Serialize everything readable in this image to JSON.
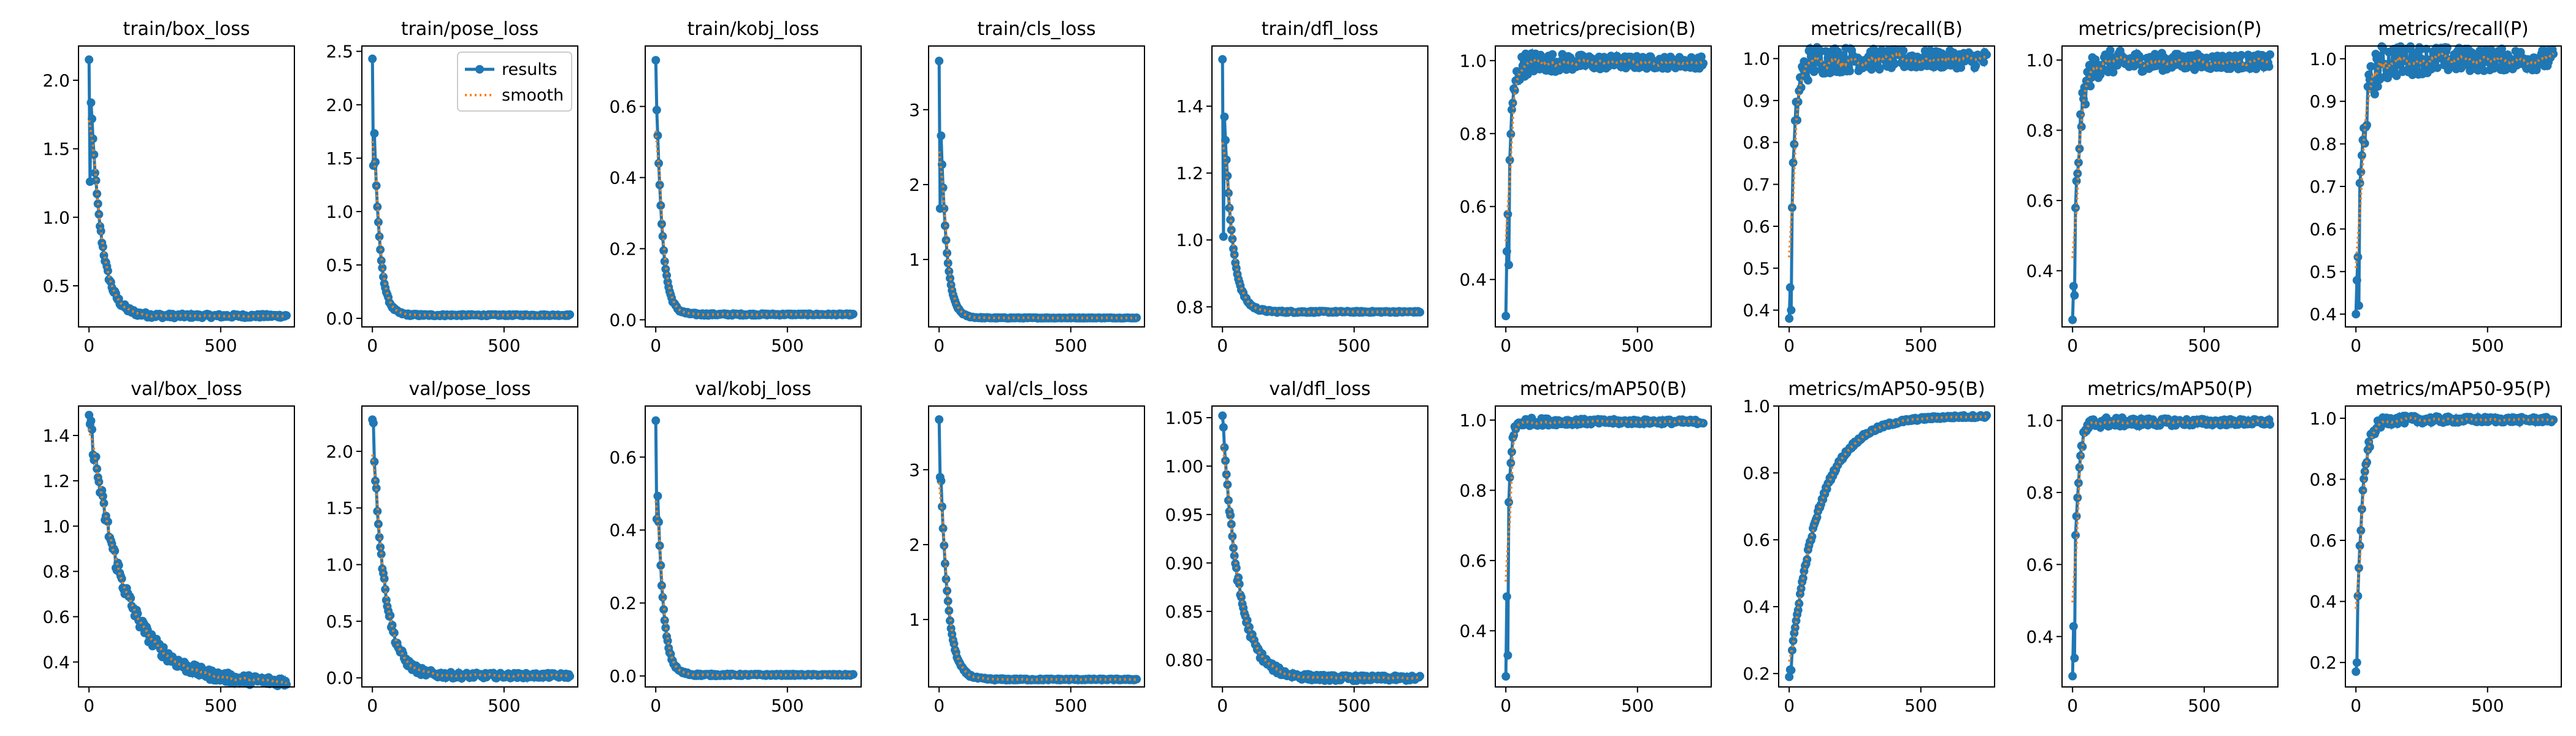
{
  "figure": {
    "legend": {
      "labels": [
        "results",
        "smooth"
      ],
      "position": "upper-right",
      "in_panel": 1
    },
    "colors": {
      "results": "#1f77b4",
      "smooth": "#ff7f0e",
      "axes": "#000000",
      "background": "#ffffff"
    }
  },
  "chart_data": [
    {
      "type": "line",
      "title": "train/box_loss",
      "x_ticks": [
        0,
        500
      ],
      "y_ticks": [
        "0.5",
        "1.0",
        "1.5",
        "2.0"
      ],
      "xlim": [
        -40,
        780
      ],
      "ylim": [
        0.2,
        2.25
      ],
      "series": [
        {
          "name": "results",
          "start": 2.15,
          "end": 0.28,
          "tau": 40,
          "noise": 0.03,
          "spike": [
            1,
            1.26
          ]
        },
        {
          "name": "smooth"
        }
      ]
    },
    {
      "type": "line",
      "title": "train/pose_loss",
      "x_ticks": [
        0,
        500
      ],
      "y_ticks": [
        "0.0",
        "0.5",
        "1.0",
        "1.5",
        "2.0",
        "2.5"
      ],
      "xlim": [
        -40,
        780
      ],
      "ylim": [
        -0.08,
        2.55
      ],
      "series": [
        {
          "name": "results",
          "start": 2.43,
          "end": 0.03,
          "tau": 22,
          "noise": 0.015,
          "spike": [
            1,
            1.43
          ]
        },
        {
          "name": "smooth"
        }
      ]
    },
    {
      "type": "line",
      "title": "train/kobj_loss",
      "x_ticks": [
        0,
        500
      ],
      "y_ticks": [
        "0.0",
        "0.2",
        "0.4",
        "0.6"
      ],
      "xlim": [
        -40,
        780
      ],
      "ylim": [
        -0.02,
        0.77
      ],
      "series": [
        {
          "name": "results",
          "start": 0.73,
          "end": 0.015,
          "tau": 22,
          "noise": 0.005,
          "spike": [
            1,
            0.59
          ]
        },
        {
          "name": "smooth"
        }
      ]
    },
    {
      "type": "line",
      "title": "train/cls_loss",
      "x_ticks": [
        0,
        500
      ],
      "y_ticks": [
        "1",
        "2",
        "3"
      ],
      "xlim": [
        -40,
        780
      ],
      "ylim": [
        0.1,
        3.85
      ],
      "series": [
        {
          "name": "results",
          "start": 3.65,
          "end": 0.22,
          "tau": 22,
          "noise": 0.01,
          "spike": [
            1,
            1.68
          ]
        },
        {
          "name": "smooth"
        }
      ]
    },
    {
      "type": "line",
      "title": "train/dfl_loss",
      "x_ticks": [
        0,
        500
      ],
      "y_ticks": [
        "0.8",
        "1.0",
        "1.2",
        "1.4"
      ],
      "xlim": [
        -40,
        780
      ],
      "ylim": [
        0.74,
        1.58
      ],
      "series": [
        {
          "name": "results",
          "start": 1.54,
          "end": 0.785,
          "tau": 30,
          "noise": 0.005,
          "spike": [
            1,
            1.01
          ]
        },
        {
          "name": "smooth"
        }
      ]
    },
    {
      "type": "line",
      "title": "metrics/precision(B)",
      "x_ticks": [
        0,
        500
      ],
      "y_ticks": [
        "0.4",
        "0.6",
        "0.8",
        "1.0"
      ],
      "xlim": [
        -40,
        780
      ],
      "ylim": [
        0.27,
        1.04
      ],
      "series": [
        {
          "name": "results",
          "start": 0.3,
          "end": 0.995,
          "tau": 15,
          "noise": 0.04,
          "spike": [
            3,
            0.44
          ]
        },
        {
          "name": "smooth"
        }
      ]
    },
    {
      "type": "line",
      "title": "metrics/recall(B)",
      "x_ticks": [
        0,
        500
      ],
      "y_ticks": [
        "0.4",
        "0.5",
        "0.6",
        "0.7",
        "0.8",
        "0.9",
        "1.0"
      ],
      "xlim": [
        -40,
        780
      ],
      "ylim": [
        0.36,
        1.03
      ],
      "series": [
        {
          "name": "results",
          "start": 0.38,
          "end": 0.998,
          "tau": 18,
          "noise": 0.05,
          "spike": [
            2,
            0.4
          ]
        },
        {
          "name": "smooth"
        }
      ]
    },
    {
      "type": "line",
      "title": "metrics/precision(P)",
      "x_ticks": [
        0,
        500
      ],
      "y_ticks": [
        "0.4",
        "0.6",
        "0.8",
        "1.0"
      ],
      "xlim": [
        -40,
        780
      ],
      "ylim": [
        0.24,
        1.04
      ],
      "series": [
        {
          "name": "results",
          "start": 0.26,
          "end": 0.995,
          "tau": 22,
          "noise": 0.05,
          "spike": [
            2,
            0.33
          ]
        },
        {
          "name": "smooth"
        }
      ]
    },
    {
      "type": "line",
      "title": "metrics/recall(P)",
      "x_ticks": [
        0,
        500
      ],
      "y_ticks": [
        "0.4",
        "0.5",
        "0.6",
        "0.7",
        "0.8",
        "0.9",
        "1.0"
      ],
      "xlim": [
        -40,
        780
      ],
      "ylim": [
        0.37,
        1.03
      ],
      "series": [
        {
          "name": "results",
          "start": 0.4,
          "end": 0.998,
          "tau": 25,
          "noise": 0.06,
          "spike": [
            3,
            0.42
          ]
        },
        {
          "name": "smooth"
        }
      ]
    },
    {
      "type": "line",
      "title": "val/box_loss",
      "x_ticks": [
        0,
        500
      ],
      "y_ticks": [
        "0.4",
        "0.6",
        "0.8",
        "1.0",
        "1.2",
        "1.4"
      ],
      "xlim": [
        -40,
        780
      ],
      "ylim": [
        0.29,
        1.53
      ],
      "series": [
        {
          "name": "results",
          "start": 1.49,
          "end": 0.31,
          "tau": 130,
          "noise": 0.05,
          "spike": [
            1,
            1.45
          ]
        },
        {
          "name": "smooth"
        }
      ]
    },
    {
      "type": "line",
      "title": "val/pose_loss",
      "x_ticks": [
        0,
        500
      ],
      "y_ticks": [
        "0.0",
        "0.5",
        "1.0",
        "1.5",
        "2.0"
      ],
      "xlim": [
        -40,
        780
      ],
      "ylim": [
        -0.08,
        2.4
      ],
      "series": [
        {
          "name": "results",
          "start": 2.28,
          "end": 0.02,
          "tau": 45,
          "noise": 0.05,
          "spike": [
            1,
            2.25
          ]
        },
        {
          "name": "smooth"
        }
      ]
    },
    {
      "type": "line",
      "title": "val/kobj_loss",
      "x_ticks": [
        0,
        500
      ],
      "y_ticks": [
        "0.0",
        "0.2",
        "0.4",
        "0.6"
      ],
      "xlim": [
        -40,
        780
      ],
      "ylim": [
        -0.03,
        0.74
      ],
      "series": [
        {
          "name": "results",
          "start": 0.7,
          "end": 0.003,
          "tau": 22,
          "noise": 0.005,
          "spike": [
            1,
            0.43
          ]
        },
        {
          "name": "smooth"
        }
      ]
    },
    {
      "type": "line",
      "title": "val/cls_loss",
      "x_ticks": [
        0,
        500
      ],
      "y_ticks": [
        "1",
        "2",
        "3"
      ],
      "xlim": [
        -40,
        780
      ],
      "ylim": [
        0.1,
        3.85
      ],
      "series": [
        {
          "name": "results",
          "start": 3.67,
          "end": 0.2,
          "tau": 28,
          "noise": 0.02,
          "spike": [
            1,
            2.9
          ]
        },
        {
          "name": "smooth"
        }
      ]
    },
    {
      "type": "line",
      "title": "val/dfl_loss",
      "x_ticks": [
        0,
        500
      ],
      "y_ticks": [
        "0.80",
        "0.85",
        "0.90",
        "0.95",
        "1.00",
        "1.05"
      ],
      "xlim": [
        -40,
        780
      ],
      "ylim": [
        0.772,
        1.062
      ],
      "series": [
        {
          "name": "results",
          "start": 1.052,
          "end": 0.781,
          "tau": 60,
          "noise": 0.006,
          "spike": [
            1,
            1.04
          ]
        },
        {
          "name": "smooth"
        }
      ]
    },
    {
      "type": "line",
      "title": "metrics/mAP50(B)",
      "x_ticks": [
        0,
        500
      ],
      "y_ticks": [
        "0.4",
        "0.6",
        "0.8",
        "1.0"
      ],
      "xlim": [
        -40,
        780
      ],
      "ylim": [
        0.24,
        1.04
      ],
      "series": [
        {
          "name": "results",
          "start": 0.27,
          "end": 0.995,
          "tau": 10,
          "noise": 0.015,
          "spike": [
            2,
            0.33
          ]
        },
        {
          "name": "smooth"
        }
      ]
    },
    {
      "type": "line",
      "title": "metrics/mAP50-95(B)",
      "x_ticks": [
        0,
        500
      ],
      "y_ticks": [
        "0.2",
        "0.4",
        "0.6",
        "0.8",
        "1.0"
      ],
      "xlim": [
        -40,
        780
      ],
      "ylim": [
        0.16,
        1.0
      ],
      "series": [
        {
          "name": "results",
          "start": 0.19,
          "end": 0.97,
          "tau": 110,
          "noise": 0.01,
          "spike": [
            2,
            0.21
          ]
        },
        {
          "name": "smooth"
        }
      ]
    },
    {
      "type": "line",
      "title": "metrics/mAP50(P)",
      "x_ticks": [
        0,
        500
      ],
      "y_ticks": [
        "0.4",
        "0.6",
        "0.8",
        "1.0"
      ],
      "xlim": [
        -40,
        780
      ],
      "ylim": [
        0.26,
        1.04
      ],
      "series": [
        {
          "name": "results",
          "start": 0.29,
          "end": 0.995,
          "tau": 15,
          "noise": 0.02,
          "spike": [
            2,
            0.34
          ]
        },
        {
          "name": "smooth"
        }
      ]
    },
    {
      "type": "line",
      "title": "metrics/mAP50-95(P)",
      "x_ticks": [
        0,
        500
      ],
      "y_ticks": [
        "0.2",
        "0.4",
        "0.6",
        "0.8",
        "1.0"
      ],
      "xlim": [
        -40,
        780
      ],
      "ylim": [
        0.12,
        1.04
      ],
      "series": [
        {
          "name": "results",
          "start": 0.17,
          "end": 0.995,
          "tau": 22,
          "noise": 0.02,
          "spike": [
            1,
            0.2
          ]
        },
        {
          "name": "smooth"
        }
      ]
    }
  ]
}
